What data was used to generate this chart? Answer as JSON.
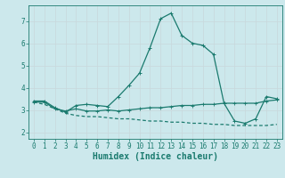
{
  "xlabel": "Humidex (Indice chaleur)",
  "bg_color": "#cce8ec",
  "grid_color": "#b0d4d8",
  "line_color": "#1a7a6e",
  "x_ticks": [
    0,
    1,
    2,
    3,
    4,
    5,
    6,
    7,
    8,
    9,
    10,
    11,
    12,
    13,
    14,
    15,
    16,
    17,
    18,
    19,
    20,
    21,
    22,
    23
  ],
  "y_ticks": [
    2,
    3,
    4,
    5,
    6,
    7
  ],
  "ylim": [
    1.7,
    7.7
  ],
  "xlim": [
    -0.5,
    23.5
  ],
  "curve1_x": [
    0,
    1,
    2,
    3,
    4,
    5,
    6,
    7,
    8,
    9,
    10,
    11,
    12,
    13,
    14,
    15,
    16,
    17,
    18,
    19,
    20,
    21,
    22,
    23
  ],
  "curve1_y": [
    3.4,
    3.4,
    3.1,
    2.9,
    3.2,
    3.25,
    3.2,
    3.15,
    3.6,
    4.1,
    4.65,
    5.8,
    7.1,
    7.35,
    6.35,
    6.0,
    5.9,
    5.5,
    3.3,
    2.5,
    2.4,
    2.6,
    3.6,
    3.5
  ],
  "curve2_x": [
    0,
    1,
    2,
    3,
    4,
    5,
    6,
    7,
    8,
    9,
    10,
    11,
    12,
    13,
    14,
    15,
    16,
    17,
    18,
    19,
    20,
    21,
    22,
    23
  ],
  "curve2_y": [
    3.35,
    3.35,
    3.05,
    2.95,
    3.05,
    2.95,
    2.95,
    3.0,
    2.95,
    3.0,
    3.05,
    3.1,
    3.1,
    3.15,
    3.2,
    3.2,
    3.25,
    3.25,
    3.3,
    3.3,
    3.3,
    3.3,
    3.4,
    3.45
  ],
  "curve3_x": [
    0,
    1,
    2,
    3,
    4,
    5,
    6,
    7,
    8,
    9,
    10,
    11,
    12,
    13,
    14,
    15,
    16,
    17,
    18,
    19,
    20,
    21,
    22,
    23
  ],
  "curve3_y": [
    3.35,
    3.25,
    3.05,
    2.85,
    2.75,
    2.7,
    2.7,
    2.65,
    2.6,
    2.6,
    2.55,
    2.5,
    2.5,
    2.45,
    2.45,
    2.4,
    2.4,
    2.35,
    2.35,
    2.3,
    2.3,
    2.3,
    2.3,
    2.35
  ],
  "tick_fontsize": 5.5,
  "label_fontsize": 7,
  "linewidth": 0.9,
  "markersize": 3.0
}
